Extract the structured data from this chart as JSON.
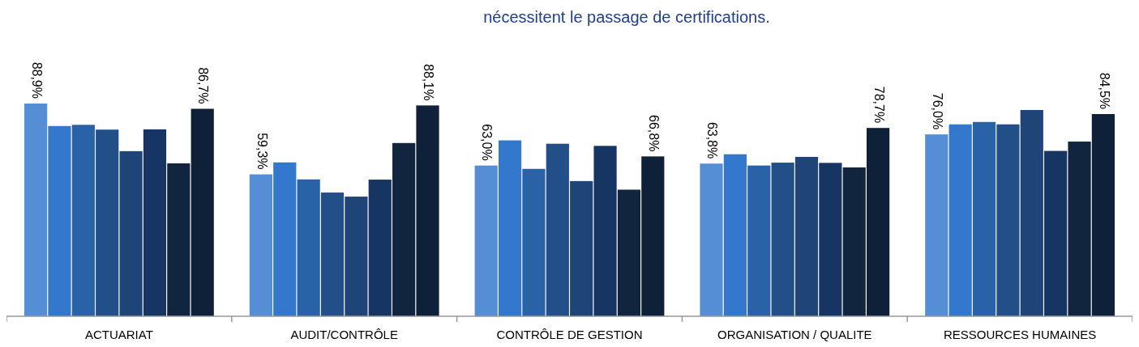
{
  "chart_data": {
    "type": "bar",
    "title": "nécessitent le passage de certifications.",
    "categories": [
      "ACTUARIAT",
      "AUDIT/CONTRÔLE",
      "CONTRÔLE DE GESTION",
      "ORGANISATION / QUALITE",
      "RESSOURCES HUMAINES"
    ],
    "series": [
      {
        "color": "#558ed5",
        "values": [
          88.9,
          59.3,
          63.0,
          63.8,
          76.0
        ],
        "value_labels": [
          "88,9%",
          "59,3%",
          "63,0%",
          "63,8%",
          "76,0%"
        ]
      },
      {
        "color": "#3378cc",
        "values": [
          79.5,
          64.3,
          73.5,
          67.7,
          80.2
        ]
      },
      {
        "color": "#2a62a7",
        "values": [
          80.0,
          57.2,
          61.6,
          63.0,
          81.2
        ]
      },
      {
        "color": "#234f88",
        "values": [
          78.0,
          51.7,
          72.1,
          64.2,
          80.2
        ]
      },
      {
        "color": "#1f4478",
        "values": [
          69.0,
          50.0,
          56.5,
          66.6,
          86.2
        ]
      },
      {
        "color": "#163563",
        "values": [
          78.1,
          57.1,
          71.2,
          64.1,
          69.1
        ]
      },
      {
        "color": "#11253f",
        "values": [
          63.9,
          72.4,
          52.9,
          62.2,
          73.0
        ]
      },
      {
        "color": "#0f2139",
        "values": [
          86.7,
          88.1,
          66.8,
          78.7,
          84.5
        ],
        "value_labels": [
          "86,7%",
          "88,1%",
          "66,8%",
          "78,7%",
          "84,5%"
        ]
      }
    ]
  }
}
